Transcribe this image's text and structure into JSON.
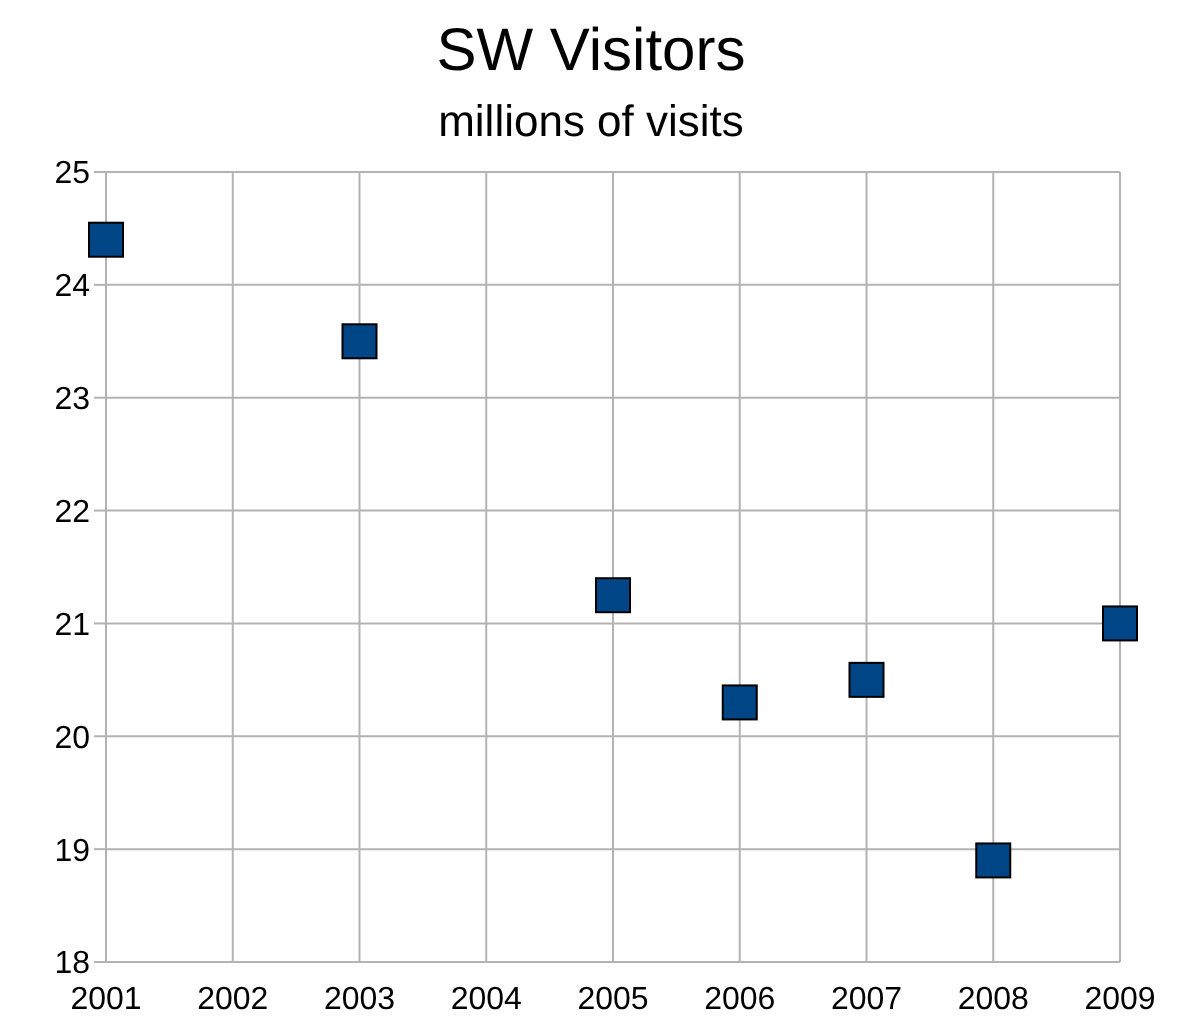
{
  "chart_data": {
    "type": "scatter",
    "title": "SW Visitors",
    "subtitle": "millions of visits",
    "x": [
      2001,
      2003,
      2005,
      2006,
      2007,
      2008,
      2009
    ],
    "series": [
      {
        "color": "#004586",
        "values": [
          24.4,
          23.5,
          21.25,
          20.3,
          20.5,
          18.9,
          21.0
        ]
      }
    ],
    "xlim": [
      2001,
      2009
    ],
    "xticks": [
      2001,
      2002,
      2003,
      2004,
      2005,
      2006,
      2007,
      2008,
      2009
    ],
    "ylim": [
      18,
      25
    ],
    "yticks": [
      18,
      19,
      20,
      21,
      22,
      23,
      24,
      25
    ],
    "grid": true,
    "marker": "square",
    "legend": false
  }
}
